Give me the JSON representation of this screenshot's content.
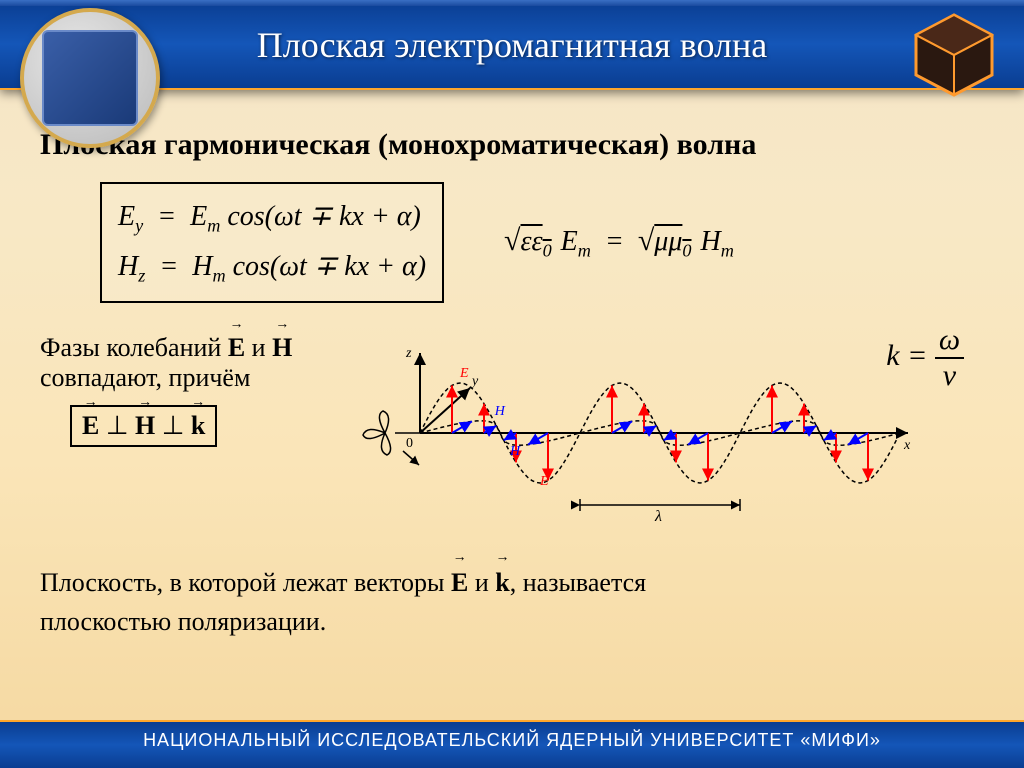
{
  "header": {
    "title": "Плоская электромагнитная волна",
    "footer": "НАЦИОНАЛЬНЫЙ ИССЛЕДОВАТЕЛЬСКИЙ ЯДЕРНЫЙ УНИВЕРСИТЕТ «МИФИ»"
  },
  "subtitle": "Плоская гармоническая (монохроматическая) волна",
  "equations": {
    "Ey": "E",
    "Ey_sub": "y",
    "Em": "E",
    "Em_sub": "m",
    "Hz": "H",
    "Hz_sub": "z",
    "Hm": "H",
    "Hm_sub": "m",
    "cos_arg": "cos(ωt ∓ kx + α)",
    "amp_left_root": "εε",
    "amp_left_sub": "0",
    "amp_right_root": "μμ",
    "amp_right_sub": "0"
  },
  "phase": {
    "line1": "Фазы колебаний ",
    "and": " и ",
    "line2": "совпадают, причём",
    "perp": "⊥"
  },
  "k_formula": {
    "k": "k",
    "eq": " = ",
    "num": "ω",
    "den": "v"
  },
  "polarization": {
    "t1": "Плоскость, в которой лежат векторы ",
    "t2": " и ",
    "t3": ", называется",
    "t4": "плоскостью поляризации."
  },
  "diagram": {
    "type": "em-wave",
    "axis_labels": {
      "x": "x",
      "y": "y",
      "z": "z",
      "origin": "0"
    },
    "field_labels": {
      "E": "E",
      "H": "H"
    },
    "wavelength_label": "λ",
    "colors": {
      "E_arrows": "#ff0000",
      "H_arrows": "#0000ff",
      "wave_dash": "#000000",
      "axis": "#000000"
    },
    "periods": 3,
    "amplitude_E": 50,
    "amplitude_H": 35,
    "arrow_count_per_period": 5,
    "stroke_width": 2,
    "dash_pattern": "4,3"
  },
  "colors": {
    "header_gradient": [
      "#0a3d91",
      "#1456b8",
      "#0a3d91"
    ],
    "accent_border": "#ffa62b",
    "emblem_ring": "#d4a94e",
    "body_bg": [
      "#f5e6c8",
      "#f5d8a0"
    ],
    "title_text": "#ffffff",
    "body_text": "#000000"
  }
}
